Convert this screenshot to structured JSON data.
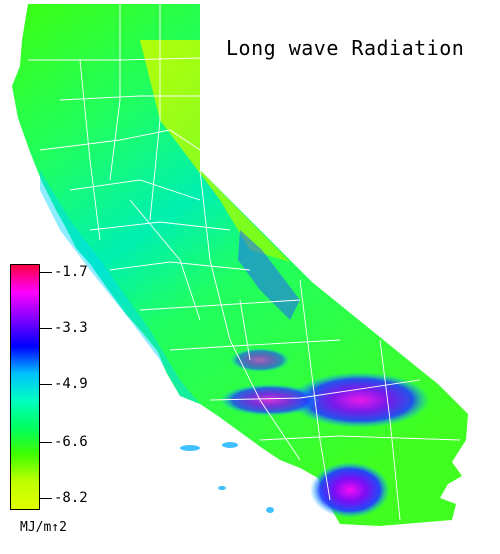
{
  "title": "Long wave Radiation",
  "legend": {
    "units": "MJ/m↑2",
    "ticks": [
      "-1.7",
      "-3.3",
      "-4.9",
      "-6.6",
      "-8.2"
    ],
    "colors_top_to_bottom": [
      "#ff0040",
      "#ff00ff",
      "#8000ff",
      "#0000ff",
      "#00c0ff",
      "#00ffc0",
      "#00ff60",
      "#40ff00",
      "#c0ff00",
      "#e0ff00"
    ]
  },
  "map": {
    "region": "California",
    "boundary_color": "#ffffff",
    "background_color": "#ffffff"
  }
}
